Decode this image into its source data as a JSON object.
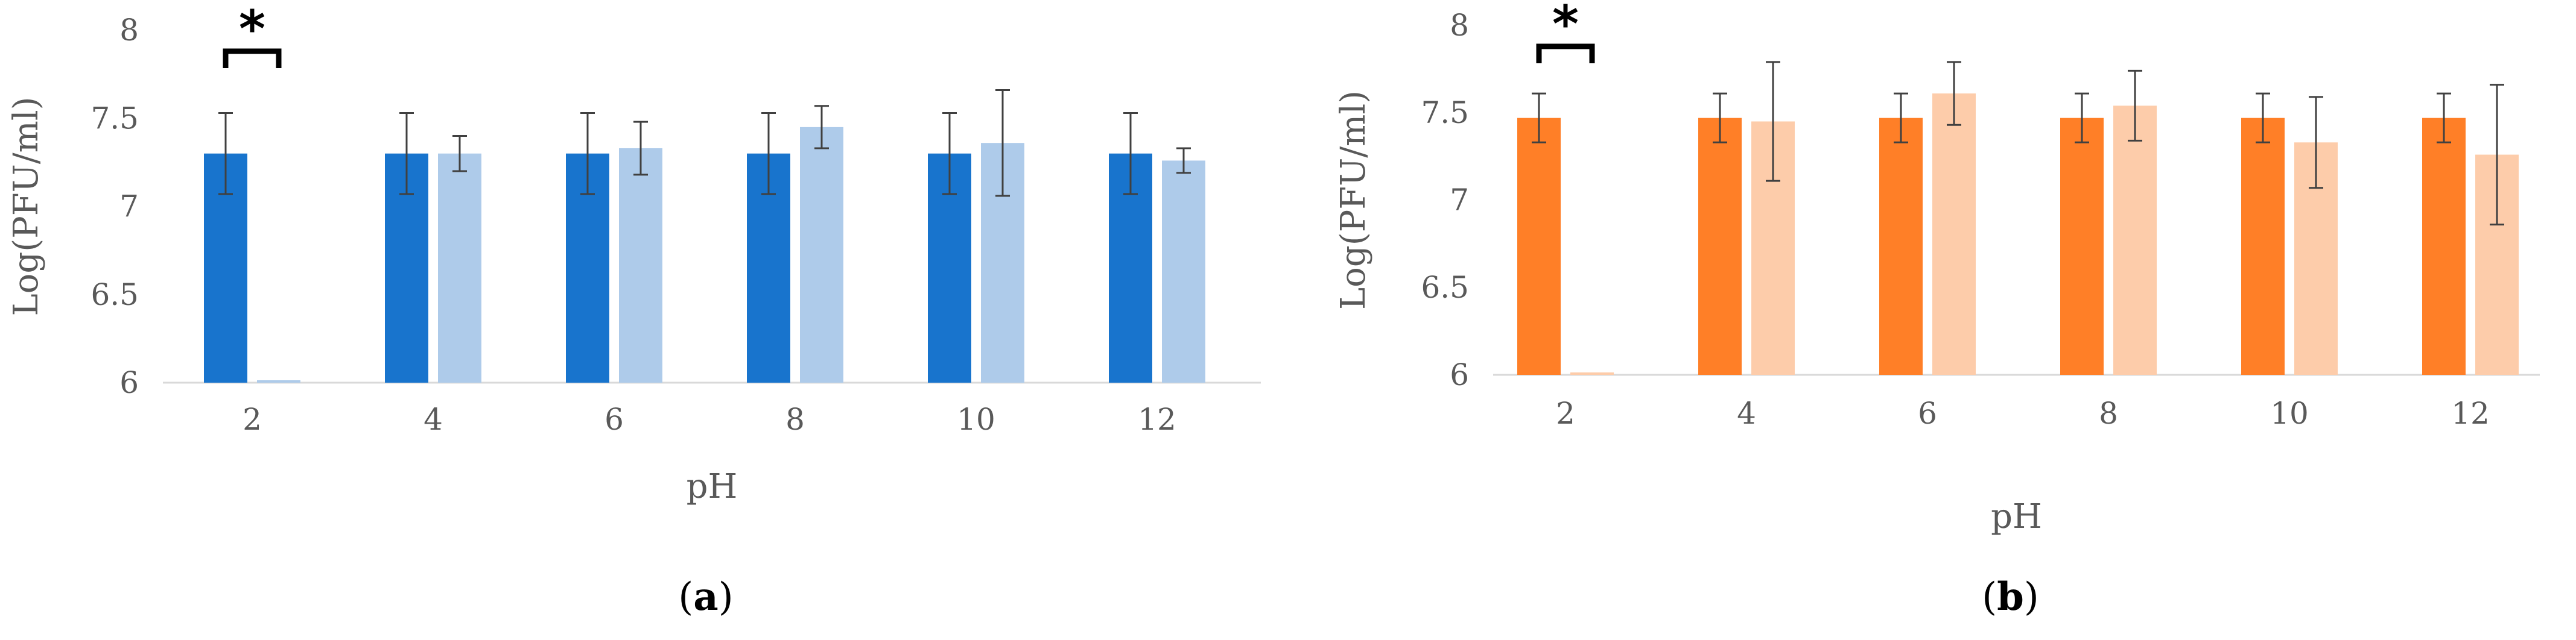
{
  "chart_data": [
    {
      "type": "bar",
      "panel_label": "a",
      "xlabel": "pH",
      "ylabel": "Log(PFU/ml)",
      "categories": [
        "2",
        "4",
        "6",
        "8",
        "10",
        "12"
      ],
      "ylim": [
        6,
        8
      ],
      "yticks": [
        "6",
        "6.5",
        "7",
        "7.5",
        "8"
      ],
      "grid": false,
      "legend": "none",
      "series": [
        {
          "color": "#1874CD",
          "values": [
            7.3,
            7.3,
            7.3,
            7.3,
            7.3,
            7.3
          ],
          "errors": [
            0.23,
            0.23,
            0.23,
            0.23,
            0.23,
            0.23
          ]
        },
        {
          "color": "#AECBEA",
          "values": [
            6.0,
            7.3,
            7.33,
            7.45,
            7.36,
            7.26
          ],
          "errors": [
            0,
            0.1,
            0.15,
            0.12,
            0.3,
            0.07
          ]
        }
      ],
      "annotations": [
        {
          "text": "*",
          "category_index": 0
        }
      ]
    },
    {
      "type": "bar",
      "panel_label": "b",
      "xlabel": "pH",
      "ylabel": "Log(PFU/ml)",
      "categories": [
        "2",
        "4",
        "6",
        "8",
        "10",
        "12"
      ],
      "ylim": [
        6,
        8
      ],
      "yticks": [
        "6",
        "6.5",
        "7",
        "7.5",
        "8"
      ],
      "grid": false,
      "legend": "none",
      "series": [
        {
          "color": "#FF7F27",
          "values": [
            7.47,
            7.47,
            7.47,
            7.47,
            7.47,
            7.47
          ],
          "errors": [
            0.14,
            0.14,
            0.14,
            0.14,
            0.14,
            0.14
          ]
        },
        {
          "color": "#FDCCAA",
          "values": [
            6.0,
            7.45,
            7.61,
            7.54,
            7.33,
            7.26
          ],
          "errors": [
            0,
            0.34,
            0.18,
            0.2,
            0.26,
            0.4
          ]
        }
      ],
      "annotations": [
        {
          "text": "*",
          "category_index": 0
        }
      ]
    }
  ]
}
